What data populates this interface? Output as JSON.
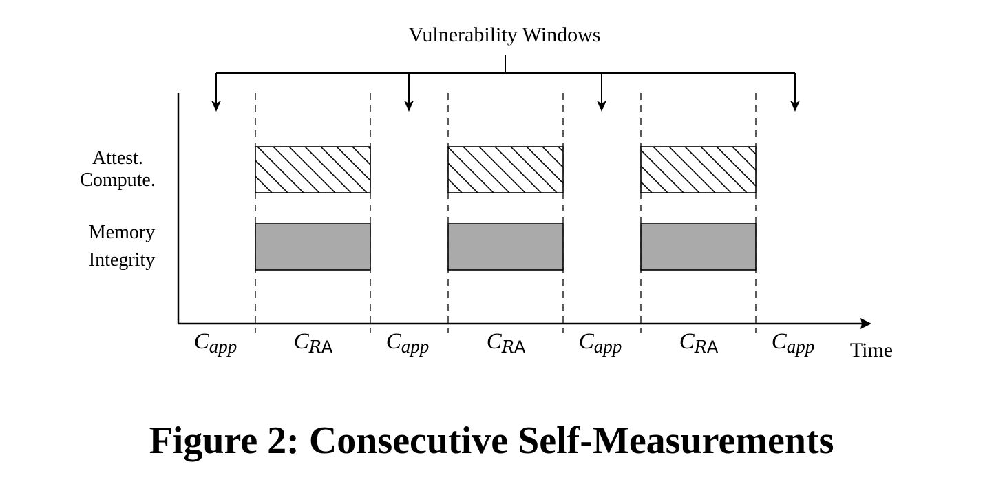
{
  "diagram": {
    "top_label": "Vulnerability Windows",
    "row_labels": {
      "attest_line1": "Attest.",
      "attest_line2": "Compute.",
      "memory_line1": "Memory",
      "memory_line2": "Integrity"
    },
    "axis_label": "Time",
    "app_segment": {
      "main": "C",
      "sub": "app"
    },
    "ra_segment": {
      "main": "C",
      "sub_script": "R",
      "sub_roman": "A"
    },
    "colors": {
      "memory_fill": "#aaaaaa",
      "hatch": "#000000",
      "line": "#000000"
    }
  },
  "caption": "Figure 2: Consecutive Self-Measurements"
}
